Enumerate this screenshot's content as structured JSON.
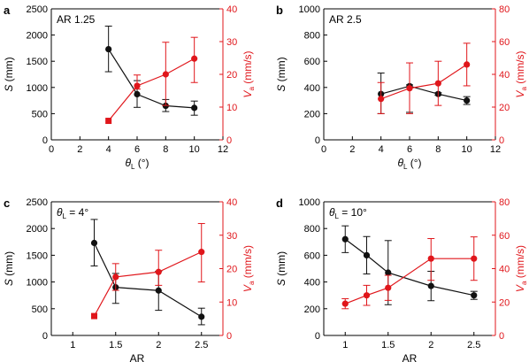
{
  "colors": {
    "black_series": "#111111",
    "red_series": "#e0161b",
    "axis": "#000000"
  },
  "chart_data": [
    {
      "panel_label": "a",
      "type": "line",
      "annotation": {
        "text": "AR 1.25"
      },
      "xlabel": {
        "main": "θ",
        "sub": "L",
        "unit": " (°)"
      },
      "ylabel_left": {
        "italic": "S",
        "rest": " (mm)"
      },
      "ylabel_right": {
        "main": "V",
        "sub": "a",
        "unit": " (mm/s)"
      },
      "xlim": [
        0,
        12
      ],
      "xticks": [
        0,
        2,
        4,
        6,
        8,
        10,
        12
      ],
      "ylim_left": [
        0,
        2500
      ],
      "yticks_left": [
        0,
        500,
        1000,
        1500,
        2000,
        2500
      ],
      "ylim_right": [
        0,
        40
      ],
      "yticks_right": [
        0,
        10,
        20,
        30,
        40
      ],
      "series": [
        {
          "axis": "left",
          "color": "#111111",
          "marker": "circle",
          "x": [
            4,
            6,
            8,
            10
          ],
          "y": [
            1730,
            870,
            650,
            610
          ],
          "err_low": [
            1300,
            620,
            540,
            470
          ],
          "err_high": [
            2170,
            1130,
            770,
            740
          ]
        },
        {
          "axis": "right",
          "color": "#e0161b",
          "marker": "circle",
          "x": [
            4,
            6,
            8,
            10
          ],
          "y": [
            5.8,
            16.5,
            20,
            24.8
          ],
          "square_first": true,
          "err_low": [
            5.8,
            15.5,
            10.5,
            17.5
          ],
          "err_high": [
            5.8,
            19.8,
            29.8,
            31.3
          ]
        }
      ]
    },
    {
      "panel_label": "b",
      "type": "line",
      "annotation": {
        "text": "AR 2.5"
      },
      "xlabel": {
        "main": "θ",
        "sub": "L",
        "unit": " (°)"
      },
      "ylabel_left": {
        "italic": "S",
        "rest": " (mm)"
      },
      "ylabel_right": {
        "main": "V",
        "sub": "a",
        "unit": " (mm/s)"
      },
      "xlim": [
        0,
        12
      ],
      "xticks": [
        0,
        2,
        4,
        6,
        8,
        10,
        12
      ],
      "ylim_left": [
        0,
        1000
      ],
      "yticks_left": [
        0,
        200,
        400,
        600,
        800,
        1000
      ],
      "ylim_right": [
        0,
        80
      ],
      "yticks_right": [
        0,
        20,
        40,
        60,
        80
      ],
      "series": [
        {
          "axis": "left",
          "color": "#111111",
          "marker": "circle",
          "x": [
            4,
            6,
            8,
            10
          ],
          "y": [
            350,
            410,
            350,
            300
          ],
          "err_low": [
            200,
            210,
            340,
            270
          ],
          "err_high": [
            510,
            420,
            360,
            330
          ]
        },
        {
          "axis": "right",
          "color": "#e0161b",
          "marker": "circle",
          "x": [
            4,
            6,
            8,
            10
          ],
          "y": [
            25,
            31.5,
            34.5,
            46
          ],
          "err_low": [
            16,
            16,
            21,
            33
          ],
          "err_high": [
            35,
            47,
            48,
            59
          ]
        }
      ]
    },
    {
      "panel_label": "c",
      "type": "line",
      "annotation": {
        "main": "θ",
        "sub": "L",
        "rest": " = 4°"
      },
      "xlabel": {
        "main": "AR",
        "sub": "",
        "unit": ""
      },
      "ylabel_left": {
        "italic": "S",
        "rest": " (mm)"
      },
      "ylabel_right": {
        "main": "V",
        "sub": "a",
        "unit": " (mm/s)"
      },
      "xlim": [
        0.75,
        2.75
      ],
      "xticks": [
        1,
        1.5,
        2,
        2.5
      ],
      "ylim_left": [
        0,
        2500
      ],
      "yticks_left": [
        0,
        500,
        1000,
        1500,
        2000,
        2500
      ],
      "ylim_right": [
        0,
        40
      ],
      "yticks_right": [
        0,
        10,
        20,
        30,
        40
      ],
      "series": [
        {
          "axis": "left",
          "color": "#111111",
          "marker": "circle",
          "x": [
            1.25,
            1.5,
            2,
            2.5
          ],
          "y": [
            1730,
            900,
            840,
            350
          ],
          "err_low": [
            1300,
            600,
            470,
            200
          ],
          "err_high": [
            2170,
            1160,
            1200,
            510
          ]
        },
        {
          "axis": "right",
          "color": "#e0161b",
          "marker": "circle",
          "x": [
            1.25,
            1.5,
            2,
            2.5
          ],
          "y": [
            5.8,
            17.5,
            19,
            25
          ],
          "square_first": true,
          "err_low": [
            5.8,
            13.5,
            15,
            16
          ],
          "err_high": [
            5.8,
            21.5,
            25.5,
            33.5
          ]
        }
      ]
    },
    {
      "panel_label": "d",
      "type": "line",
      "annotation": {
        "main": "θ",
        "sub": "L",
        "rest": " = 10°"
      },
      "xlabel": {
        "main": "AR",
        "sub": "",
        "unit": ""
      },
      "ylabel_left": {
        "italic": "S",
        "rest": " (mm)"
      },
      "ylabel_right": {
        "main": "V",
        "sub": "a",
        "unit": " (mm/s)"
      },
      "xlim": [
        0.75,
        2.75
      ],
      "xticks": [
        1,
        1.5,
        2,
        2.5
      ],
      "ylim_left": [
        0,
        1000
      ],
      "yticks_left": [
        0,
        200,
        400,
        600,
        800,
        1000
      ],
      "ylim_right": [
        0,
        80
      ],
      "yticks_right": [
        0,
        20,
        40,
        60,
        80
      ],
      "series": [
        {
          "axis": "left",
          "color": "#111111",
          "marker": "circle",
          "x": [
            1,
            1.25,
            1.5,
            2,
            2.5
          ],
          "y": [
            720,
            600,
            470,
            370,
            300
          ],
          "err_low": [
            620,
            460,
            230,
            260,
            270
          ],
          "err_high": [
            820,
            740,
            710,
            480,
            330
          ]
        },
        {
          "axis": "right",
          "color": "#e0161b",
          "marker": "circle",
          "x": [
            1,
            1.25,
            1.5,
            2,
            2.5
          ],
          "y": [
            19,
            24,
            28.5,
            46,
            46
          ],
          "err_low": [
            16,
            18,
            21,
            33,
            33
          ],
          "err_high": [
            22,
            30,
            36,
            58,
            59
          ]
        }
      ]
    }
  ]
}
